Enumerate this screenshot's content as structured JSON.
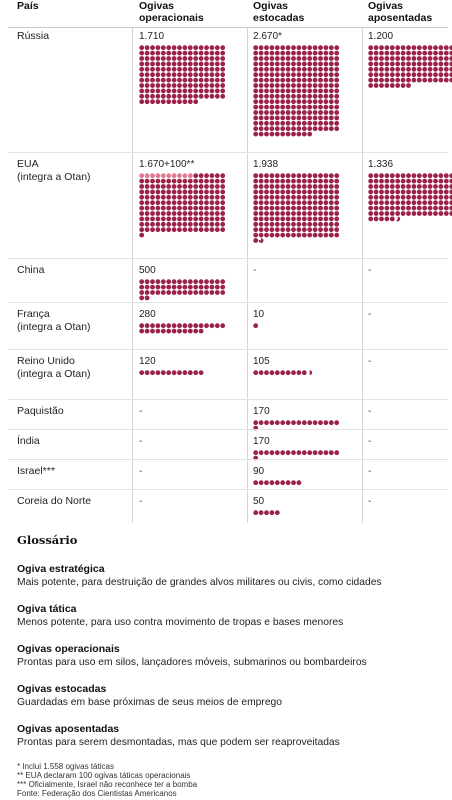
{
  "header": {
    "country": "País",
    "operational": [
      "Ogivas",
      "operacionais"
    ],
    "stockpiled": [
      "Ogivas",
      "estocadas"
    ],
    "retired": [
      "Ogivas",
      "aposentadas"
    ]
  },
  "colors": {
    "dot": "#9b2248",
    "tactical": "#e07a93"
  },
  "chart_data": {
    "type": "table",
    "columns": [
      "País",
      "Ogivas operacionais",
      "Ogivas estocadas",
      "Ogivas aposentadas"
    ],
    "rows": [
      {
        "country": "Rússia",
        "sub": "",
        "operational": {
          "label": "1.710",
          "value": 1710
        },
        "stockpiled": {
          "label": "2.670*",
          "value": 2670
        },
        "retired": {
          "label": "1.200",
          "value": 1200
        }
      },
      {
        "country": "EUA",
        "sub": "(integra a Otan)",
        "operational": {
          "label": "1.670+100**",
          "value": 1770,
          "tactical": 100
        },
        "stockpiled": {
          "label": "1.938",
          "value": 1938
        },
        "retired": {
          "label": "1.336",
          "value": 1336
        }
      },
      {
        "country": "China",
        "sub": "",
        "operational": {
          "label": "500",
          "value": 500
        },
        "stockpiled": {
          "label": "-",
          "value": null
        },
        "retired": {
          "label": "-",
          "value": null
        }
      },
      {
        "country": "França",
        "sub": "(integra a Otan)",
        "operational": {
          "label": "280",
          "value": 280
        },
        "stockpiled": {
          "label": "10",
          "value": 10
        },
        "retired": {
          "label": "-",
          "value": null
        }
      },
      {
        "country": "Reino Unido",
        "sub": "(integra a Otan)",
        "operational": {
          "label": "120",
          "value": 120
        },
        "stockpiled": {
          "label": "105",
          "value": 105
        },
        "retired": {
          "label": "-",
          "value": null
        }
      },
      {
        "country": "Paquistão",
        "sub": "",
        "operational": {
          "label": "-",
          "value": null
        },
        "stockpiled": {
          "label": "170",
          "value": 170
        },
        "retired": {
          "label": "-",
          "value": null
        }
      },
      {
        "country": "Índia",
        "sub": "",
        "operational": {
          "label": "-",
          "value": null
        },
        "stockpiled": {
          "label": "170",
          "value": 170
        },
        "retired": {
          "label": "-",
          "value": null
        }
      },
      {
        "country": "Israel***",
        "sub": "",
        "operational": {
          "label": "-",
          "value": null
        },
        "stockpiled": {
          "label": "90",
          "value": 90
        },
        "retired": {
          "label": "-",
          "value": null
        }
      },
      {
        "country": "Coreia do Norte",
        "sub": "",
        "operational": {
          "label": "-",
          "value": null
        },
        "stockpiled": {
          "label": "50",
          "value": 50
        },
        "retired": {
          "label": "-",
          "value": null
        }
      }
    ]
  },
  "glossary": {
    "title": "Glossário",
    "items": [
      {
        "term": "Ogiva estratégica",
        "def": "Mais potente, para destruição de grandes alvos militares ou civis, como cidades"
      },
      {
        "term": "Ogiva tática",
        "def": "Menos potente, para uso contra movimento de tropas e bases menores"
      },
      {
        "term": "Ogivas operacionais",
        "def": "Prontas para uso em silos, lançadores móveis, submarinos ou bombardeiros"
      },
      {
        "term": "Ogivas estocadas",
        "def": "Guardadas em base próximas de seus meios de emprego"
      },
      {
        "term": "Ogivas aposentadas",
        "def": "Prontas para serem desmontadas, mas que podem ser reaproveitadas"
      }
    ]
  },
  "notes": [
    "* Inclui 1.558 ogivas táticas",
    "** EUA declaram 100 ogivas táticas operacionais",
    "*** Oficialmente, Israel não reconhece ter a bomba",
    "Fonte: Federação dos Cientistas Americanos"
  ]
}
